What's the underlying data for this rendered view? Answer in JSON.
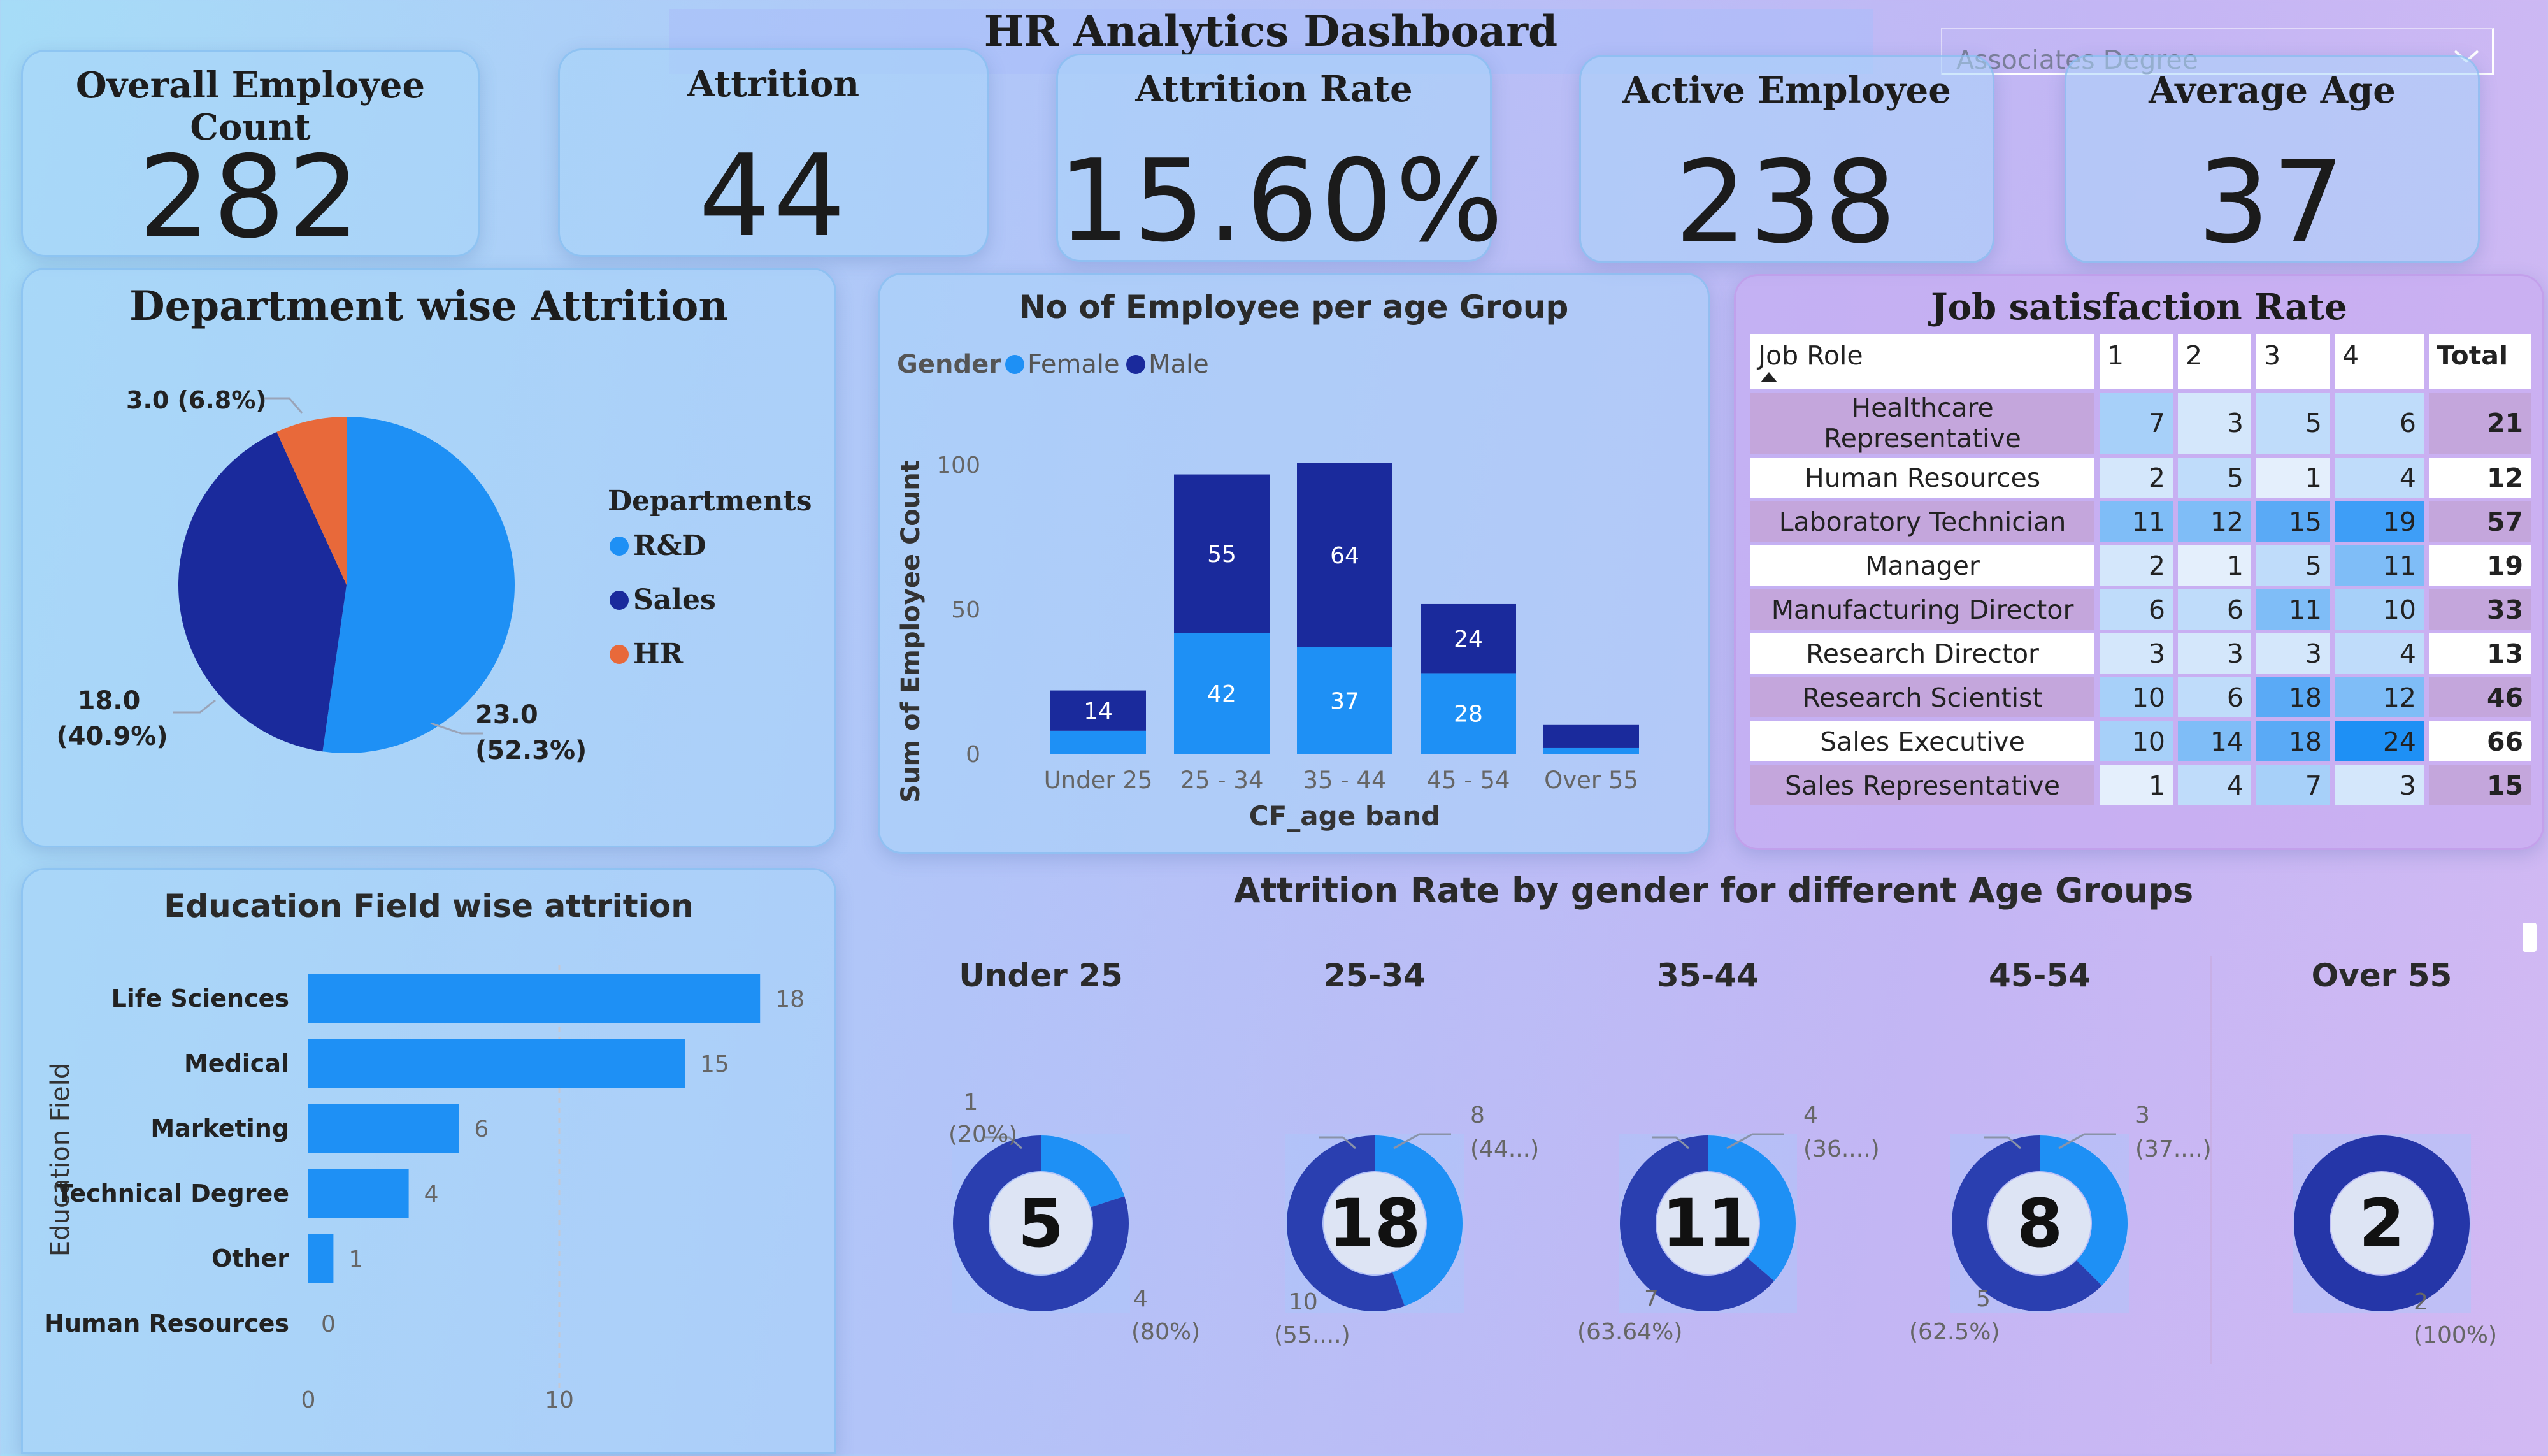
{
  "dashboard": {
    "title": "HR Analytics Dashboard",
    "filter": {
      "selected": "Associates Degree"
    }
  },
  "kpis": [
    {
      "label": "Overall Employee Count",
      "value": "282"
    },
    {
      "label": "Attrition",
      "value": "44"
    },
    {
      "label": "Attrition Rate",
      "value": "15.60%"
    },
    {
      "label": "Active Employee",
      "value": "238"
    },
    {
      "label": "Average Age",
      "value": "37"
    }
  ],
  "colors": {
    "light_blue": "#1e90f5",
    "dark_blue": "#1a2a9c",
    "orange": "#e8693a"
  },
  "department_chart": {
    "title": "Department wise Attrition",
    "legend_title": "Departments",
    "legend": [
      "R&D",
      "Sales",
      "HR"
    ],
    "labels": {
      "rd_value": "23.0",
      "rd_pct": "(52.3%)",
      "sales_value": "18.0",
      "sales_pct": "(40.9%)",
      "hr_label": "3.0 (6.8%)"
    }
  },
  "age_group_chart": {
    "title": "No of Employee per age Group",
    "legend_title": "Gender",
    "legend": [
      "Female",
      "Male"
    ],
    "xlabel": "CF_age band",
    "ylabel": "Sum of Employee Count",
    "yticks": [
      "0",
      "50",
      "100"
    ],
    "categories": [
      "Under 25",
      "25 - 34",
      "35 - 44",
      "45 - 54",
      "Over 55"
    ],
    "male_labels": [
      "14",
      "55",
      "64",
      "24",
      ""
    ],
    "female_labels": [
      "",
      "42",
      "37",
      "28",
      ""
    ]
  },
  "job_satisfaction": {
    "title": "Job satisfaction Rate",
    "headers": [
      "Job Role",
      "1",
      "2",
      "3",
      "4",
      "Total"
    ],
    "rows": [
      {
        "role": "Healthcare Representative",
        "v": [
          "7",
          "3",
          "5",
          "6"
        ],
        "total": "21"
      },
      {
        "role": "Human Resources",
        "v": [
          "2",
          "5",
          "1",
          "4"
        ],
        "total": "12"
      },
      {
        "role": "Laboratory Technician",
        "v": [
          "11",
          "12",
          "15",
          "19"
        ],
        "total": "57"
      },
      {
        "role": "Manager",
        "v": [
          "2",
          "1",
          "5",
          "11"
        ],
        "total": "19"
      },
      {
        "role": "Manufacturing Director",
        "v": [
          "6",
          "6",
          "11",
          "10"
        ],
        "total": "33"
      },
      {
        "role": "Research Director",
        "v": [
          "3",
          "3",
          "3",
          "4"
        ],
        "total": "13"
      },
      {
        "role": "Research Scientist",
        "v": [
          "10",
          "6",
          "18",
          "12"
        ],
        "total": "46"
      },
      {
        "role": "Sales Executive",
        "v": [
          "10",
          "14",
          "18",
          "24"
        ],
        "total": "66"
      },
      {
        "role": "Sales Representative",
        "v": [
          "1",
          "4",
          "7",
          "3"
        ],
        "total": "15"
      }
    ]
  },
  "education_chart": {
    "title": "Education Field wise attrition",
    "ylabel": "Education Field",
    "xticks": [
      "0",
      "10"
    ],
    "bars": [
      {
        "label": "Life Sciences",
        "value": "18"
      },
      {
        "label": "Medical",
        "value": "15"
      },
      {
        "label": "Marketing",
        "value": "6"
      },
      {
        "label": "Technical Degree",
        "value": "4"
      },
      {
        "label": "Other",
        "value": "1"
      },
      {
        "label": "Human Resources",
        "value": "0"
      }
    ]
  },
  "gender_donuts": {
    "title": "Attrition Rate by gender for different Age Groups",
    "groups": [
      {
        "label": "Under 25",
        "center": "5",
        "a": "1",
        "a_pct": "(20%)",
        "b": "4",
        "b_pct": "(80%)"
      },
      {
        "label": "25-34",
        "center": "18",
        "a": "8",
        "a_pct": "(44...)",
        "b": "10",
        "b_pct": "(55....)"
      },
      {
        "label": "35-44",
        "center": "11",
        "a": "4",
        "a_pct": "(36....)",
        "b": "7",
        "b_pct": "(63.64%)"
      },
      {
        "label": "45-54",
        "center": "8",
        "a": "3",
        "a_pct": "(37....)",
        "b": "5",
        "b_pct": "(62.5%)"
      },
      {
        "label": "Over 55",
        "center": "2",
        "b": "2",
        "b_pct": "(100%)"
      }
    ]
  },
  "chart_data": [
    {
      "type": "pie",
      "title": "Department wise Attrition",
      "categories": [
        "R&D",
        "Sales",
        "HR"
      ],
      "values": [
        23,
        18,
        3
      ],
      "percent": [
        52.3,
        40.9,
        6.8
      ],
      "legend_placement": "right"
    },
    {
      "type": "bar",
      "stacked": true,
      "title": "No of Employee per age Group",
      "categories": [
        "Under 25",
        "25 - 34",
        "35 - 44",
        "45 - 54",
        "Over 55"
      ],
      "series": [
        {
          "name": "Female",
          "values": [
            8,
            42,
            37,
            28,
            2
          ]
        },
        {
          "name": "Male",
          "values": [
            14,
            55,
            64,
            24,
            8
          ]
        }
      ],
      "xlabel": "CF_age band",
      "ylabel": "Sum of Employee Count",
      "ylim": [
        0,
        115
      ],
      "legend_placement": "top-left"
    },
    {
      "type": "table",
      "title": "Job satisfaction Rate",
      "columns": [
        "Job Role",
        "1",
        "2",
        "3",
        "4",
        "Total"
      ]
    },
    {
      "type": "bar",
      "orientation": "horizontal",
      "title": "Education Field wise attrition",
      "categories": [
        "Life Sciences",
        "Medical",
        "Marketing",
        "Technical Degree",
        "Other",
        "Human Resources"
      ],
      "values": [
        18,
        15,
        6,
        4,
        1,
        0
      ],
      "ylabel": "Education Field",
      "xlim": [
        0,
        20
      ]
    },
    {
      "type": "pie",
      "donut": true,
      "title": "Attrition Rate by gender for different Age Groups",
      "groups": [
        {
          "name": "Under 25",
          "total": 5,
          "values": [
            1,
            4
          ]
        },
        {
          "name": "25-34",
          "total": 18,
          "values": [
            8,
            10
          ]
        },
        {
          "name": "35-44",
          "total": 11,
          "values": [
            4,
            7
          ]
        },
        {
          "name": "45-54",
          "total": 8,
          "values": [
            3,
            5
          ]
        },
        {
          "name": "Over 55",
          "total": 2,
          "values": [
            0,
            2
          ]
        }
      ]
    }
  ]
}
